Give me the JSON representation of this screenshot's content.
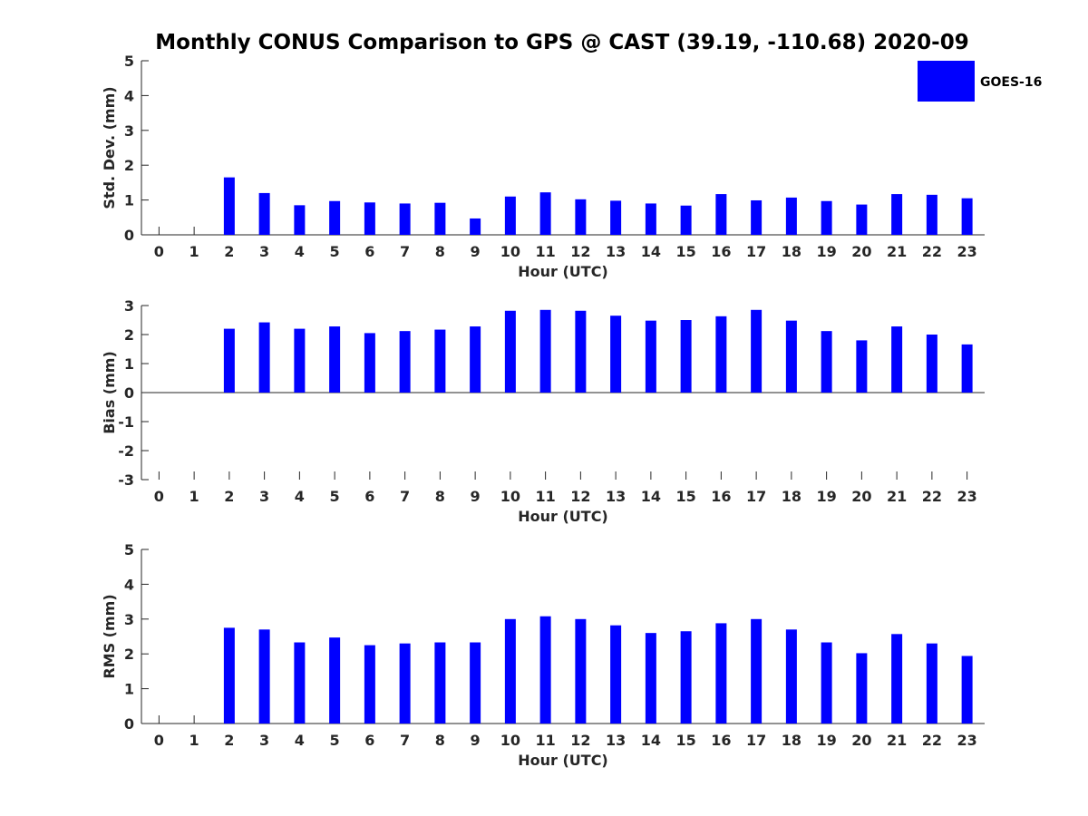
{
  "title": "Monthly CONUS Comparison to GPS @ CAST (39.19, -110.68) 2020-09",
  "legend": {
    "label": "GOES-16",
    "color": "#0000ff",
    "placement": "top-right"
  },
  "chart_data": [
    {
      "type": "bar",
      "xlabel": "Hour (UTC)",
      "ylabel": "Std. Dev. (mm)",
      "ylim": [
        0,
        5
      ],
      "yticks": [
        0,
        1,
        2,
        3,
        4,
        5
      ],
      "categories": [
        "0",
        "1",
        "2",
        "3",
        "4",
        "5",
        "6",
        "7",
        "8",
        "9",
        "10",
        "11",
        "12",
        "13",
        "14",
        "15",
        "16",
        "17",
        "18",
        "19",
        "20",
        "21",
        "22",
        "23"
      ],
      "series": [
        {
          "name": "GOES-16",
          "values": [
            null,
            null,
            1.65,
            1.2,
            0.85,
            0.97,
            0.93,
            0.9,
            0.92,
            0.47,
            1.1,
            1.22,
            1.02,
            0.98,
            0.9,
            0.84,
            1.17,
            0.99,
            1.07,
            0.97,
            0.87,
            1.17,
            1.15,
            1.05
          ]
        }
      ],
      "grid": false
    },
    {
      "type": "bar",
      "xlabel": "Hour (UTC)",
      "ylabel": "Bias (mm)",
      "ylim": [
        -3,
        3
      ],
      "yticks": [
        -3,
        -2,
        -1,
        0,
        1,
        2,
        3
      ],
      "categories": [
        "0",
        "1",
        "2",
        "3",
        "4",
        "5",
        "6",
        "7",
        "8",
        "9",
        "10",
        "11",
        "12",
        "13",
        "14",
        "15",
        "16",
        "17",
        "18",
        "19",
        "20",
        "21",
        "22",
        "23"
      ],
      "series": [
        {
          "name": "GOES-16",
          "values": [
            null,
            null,
            2.2,
            2.42,
            2.2,
            2.28,
            2.05,
            2.12,
            2.17,
            2.28,
            2.82,
            2.85,
            2.82,
            2.65,
            2.48,
            2.5,
            2.63,
            2.85,
            2.48,
            2.12,
            1.8,
            2.28,
            2.0,
            1.66
          ]
        }
      ],
      "grid": false
    },
    {
      "type": "bar",
      "xlabel": "Hour (UTC)",
      "ylabel": "RMS (mm)",
      "ylim": [
        0,
        5
      ],
      "yticks": [
        0,
        1,
        2,
        3,
        4,
        5
      ],
      "categories": [
        "0",
        "1",
        "2",
        "3",
        "4",
        "5",
        "6",
        "7",
        "8",
        "9",
        "10",
        "11",
        "12",
        "13",
        "14",
        "15",
        "16",
        "17",
        "18",
        "19",
        "20",
        "21",
        "22",
        "23"
      ],
      "series": [
        {
          "name": "GOES-16",
          "values": [
            null,
            null,
            2.75,
            2.7,
            2.33,
            2.47,
            2.25,
            2.3,
            2.33,
            2.33,
            3.0,
            3.08,
            3.0,
            2.82,
            2.6,
            2.65,
            2.88,
            3.0,
            2.7,
            2.33,
            2.02,
            2.57,
            2.3,
            1.94
          ]
        }
      ],
      "grid": false
    }
  ]
}
